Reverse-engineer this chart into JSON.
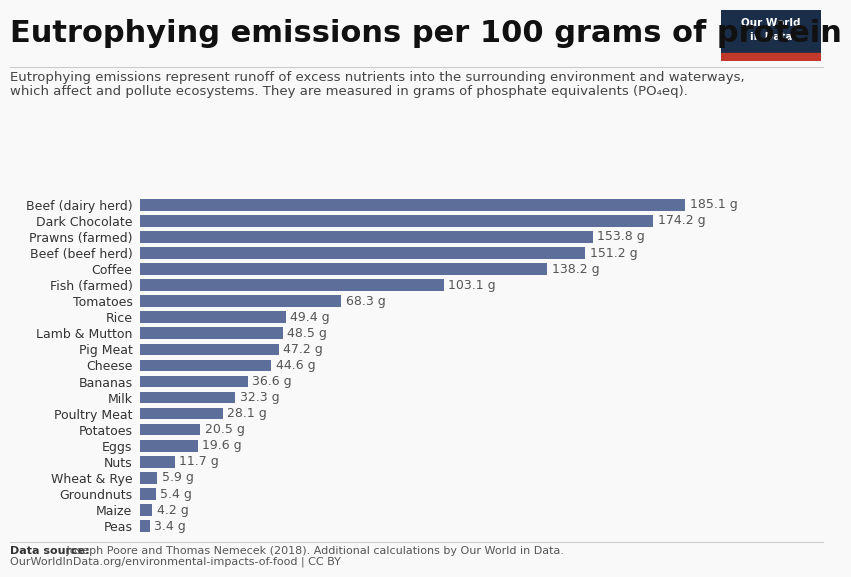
{
  "title": "Eutrophying emissions per 100 grams of protein",
  "subtitle_line1": "Eutrophying emissions represent runoff of excess nutrients into the surrounding environment and waterways,",
  "subtitle_line2": "which affect and pollute ecosystems. They are measured in grams of phosphate equivalents (PO₄eq).",
  "source_bold": "Data source:",
  "source_rest": " Joseph Poore and Thomas Nemecek (2018). Additional calculations by Our World in Data.",
  "source_line2": "OurWorldInData.org/environmental-impacts-of-food | CC BY",
  "categories": [
    "Beef (dairy herd)",
    "Dark Chocolate",
    "Prawns (farmed)",
    "Beef (beef herd)",
    "Coffee",
    "Fish (farmed)",
    "Tomatoes",
    "Rice",
    "Lamb & Mutton",
    "Pig Meat",
    "Cheese",
    "Bananas",
    "Milk",
    "Poultry Meat",
    "Potatoes",
    "Eggs",
    "Nuts",
    "Wheat & Rye",
    "Groundnuts",
    "Maize",
    "Peas"
  ],
  "values": [
    185.1,
    174.2,
    153.8,
    151.2,
    138.2,
    103.1,
    68.3,
    49.4,
    48.5,
    47.2,
    44.6,
    36.6,
    32.3,
    28.1,
    20.5,
    19.6,
    11.7,
    5.9,
    5.4,
    4.2,
    3.4
  ],
  "bar_color": "#5d6e9a",
  "background_color": "#f9f9f9",
  "title_fontsize": 22,
  "subtitle_fontsize": 9.5,
  "label_fontsize": 9,
  "value_fontsize": 9,
  "source_fontsize": 8,
  "xlim": [
    0,
    215
  ],
  "logo_bg_color": "#1a2e4a",
  "logo_red_color": "#c0392b"
}
